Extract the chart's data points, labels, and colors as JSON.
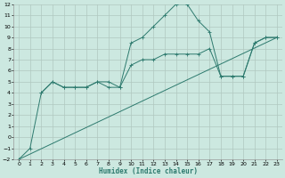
{
  "xlabel": "Humidex (Indice chaleur)",
  "xlim": [
    -0.5,
    23.5
  ],
  "ylim": [
    -2,
    12
  ],
  "xticks": [
    0,
    1,
    2,
    3,
    4,
    5,
    6,
    7,
    8,
    9,
    10,
    11,
    12,
    13,
    14,
    15,
    16,
    17,
    18,
    19,
    20,
    21,
    22,
    23
  ],
  "yticks": [
    -2,
    -1,
    0,
    1,
    2,
    3,
    4,
    5,
    6,
    7,
    8,
    9,
    10,
    11,
    12
  ],
  "bg_color": "#cce8e0",
  "grid_color": "#b0c8c0",
  "line_color": "#2d7a6e",
  "line1_x": [
    0,
    1,
    2,
    3,
    4,
    5,
    6,
    7,
    8,
    9,
    10,
    11,
    12,
    13,
    14,
    15,
    16,
    17,
    18,
    19,
    20,
    21,
    22,
    23
  ],
  "line1_y": [
    -2,
    -1,
    4,
    5,
    4.5,
    4.5,
    4.5,
    5,
    5,
    4.5,
    8.5,
    9,
    10,
    11,
    12,
    12,
    10.5,
    9.5,
    5.5,
    5.5,
    5.5,
    8.5,
    9,
    9
  ],
  "line2_x": [
    2,
    3,
    4,
    5,
    6,
    7,
    8,
    9,
    10,
    11,
    12,
    13,
    14,
    15,
    16,
    17,
    18,
    19,
    20,
    21,
    22,
    23
  ],
  "line2_y": [
    4,
    5,
    4.5,
    4.5,
    4.5,
    5,
    4.5,
    4.5,
    6.5,
    7,
    7,
    7.5,
    7.5,
    7.5,
    7.5,
    8,
    5.5,
    5.5,
    5.5,
    8.5,
    9,
    9
  ],
  "line3_x": [
    0,
    23
  ],
  "line3_y": [
    -2,
    9
  ]
}
